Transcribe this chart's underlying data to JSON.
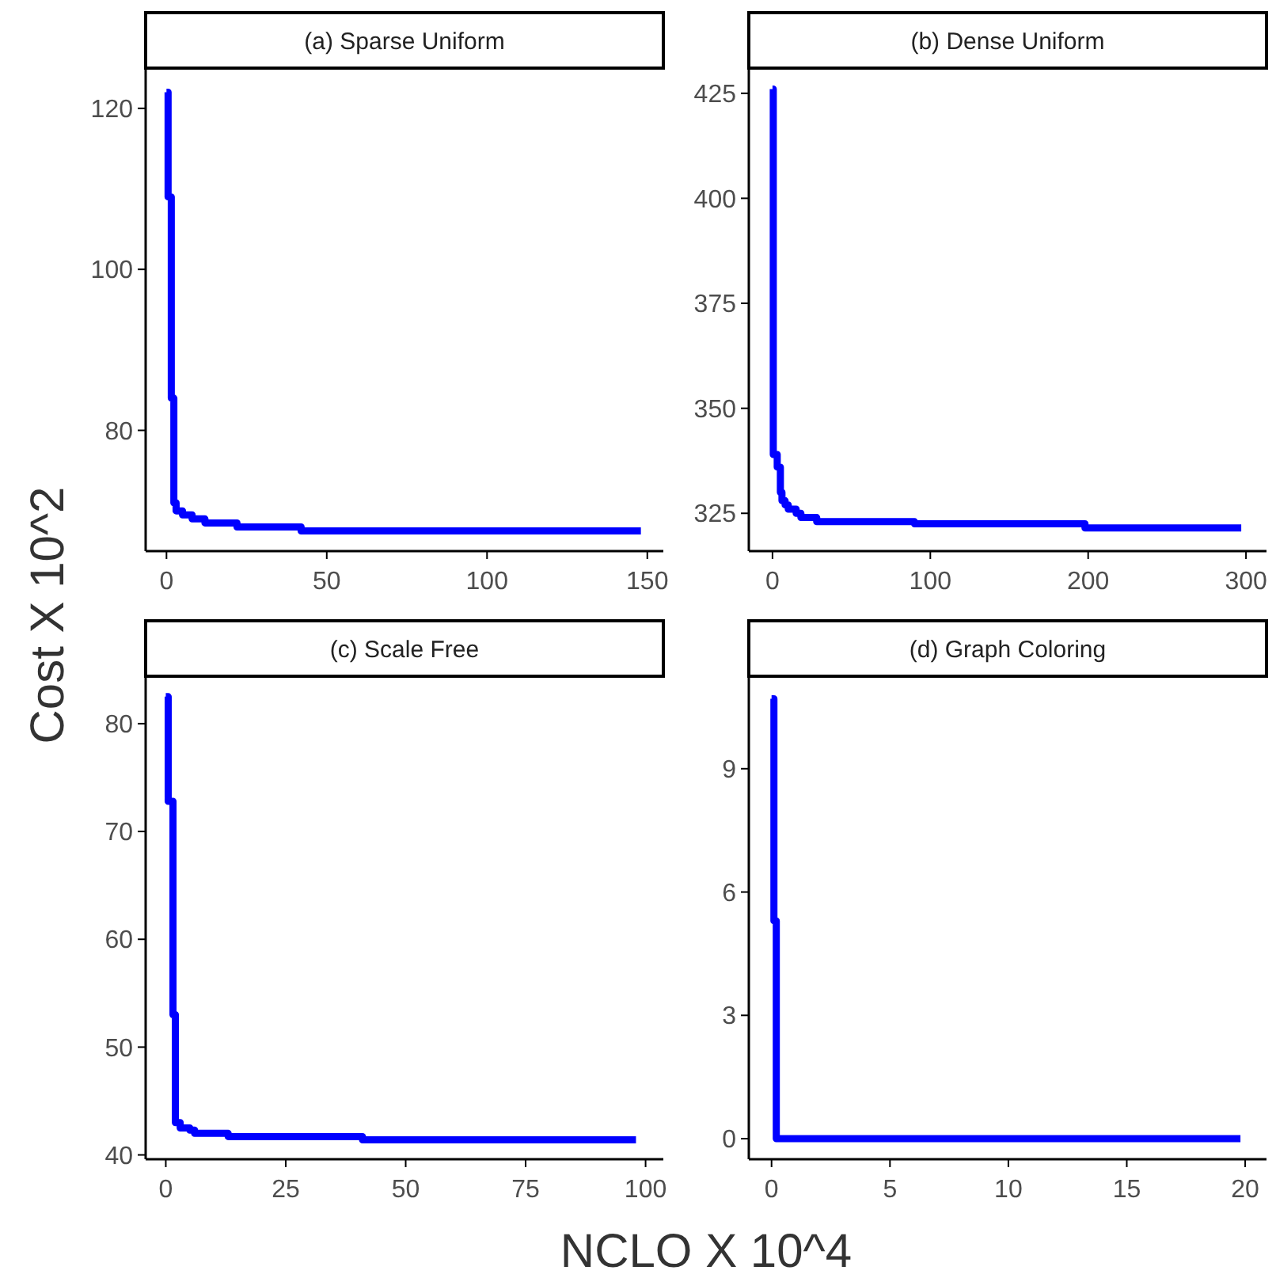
{
  "chart_data": [
    {
      "type": "step",
      "title": "(a) Sparse Uniform",
      "ylabel": "Cost X 10^2",
      "x": [
        0,
        0.5,
        1.5,
        2.3,
        3,
        5,
        8,
        12,
        22,
        42,
        148
      ],
      "values": [
        122,
        109,
        84,
        71,
        70,
        69.5,
        69,
        68.5,
        68,
        67.5,
        67.5
      ],
      "color": "#0000ff",
      "xlim": [
        -6.5,
        155
      ],
      "xticks": [
        0,
        50,
        100,
        150
      ],
      "ylim": [
        65,
        125
      ],
      "yticks": [
        80,
        100,
        120
      ],
      "grid": false
    },
    {
      "type": "step",
      "title": "(b) Dense Uniform",
      "x": [
        0,
        0.5,
        3,
        5,
        6,
        8,
        10,
        15,
        18,
        28,
        90,
        198,
        297
      ],
      "values": [
        426,
        339,
        336,
        330,
        328,
        327,
        326,
        325,
        324,
        323,
        322.5,
        321.5,
        321.5
      ],
      "color": "#0000ff",
      "xlim": [
        -15,
        313
      ],
      "xticks": [
        0,
        100,
        200,
        300
      ],
      "ylim": [
        316,
        431
      ],
      "yticks": [
        325,
        350,
        375,
        400,
        425
      ],
      "grid": false
    },
    {
      "type": "step",
      "title": "(c) Scale Free",
      "xlabel": "NCLO X 10^4",
      "x": [
        0,
        0.5,
        1.5,
        2,
        3,
        5,
        6,
        13,
        41,
        98
      ],
      "values": [
        82.5,
        72.8,
        53,
        43,
        42.5,
        42.3,
        42,
        41.7,
        41.4,
        41.4
      ],
      "color": "#0000ff",
      "xlim": [
        -4.2,
        103.7
      ],
      "xticks": [
        0,
        25,
        50,
        75,
        100
      ],
      "ylim": [
        39.6,
        84.4
      ],
      "yticks": [
        40,
        50,
        60,
        70,
        80
      ],
      "grid": false
    },
    {
      "type": "step",
      "title": "(d) Graph Coloring",
      "x": [
        0,
        0.1,
        0.2,
        19.8
      ],
      "values": [
        10.7,
        5.3,
        0,
        0
      ],
      "color": "#0000ff",
      "xlim": [
        -0.96,
        20.9
      ],
      "xticks": [
        0,
        5,
        10,
        15,
        20
      ],
      "ylim": [
        -0.5,
        11.25
      ],
      "yticks": [
        0,
        3,
        6,
        9
      ],
      "grid": false
    }
  ]
}
